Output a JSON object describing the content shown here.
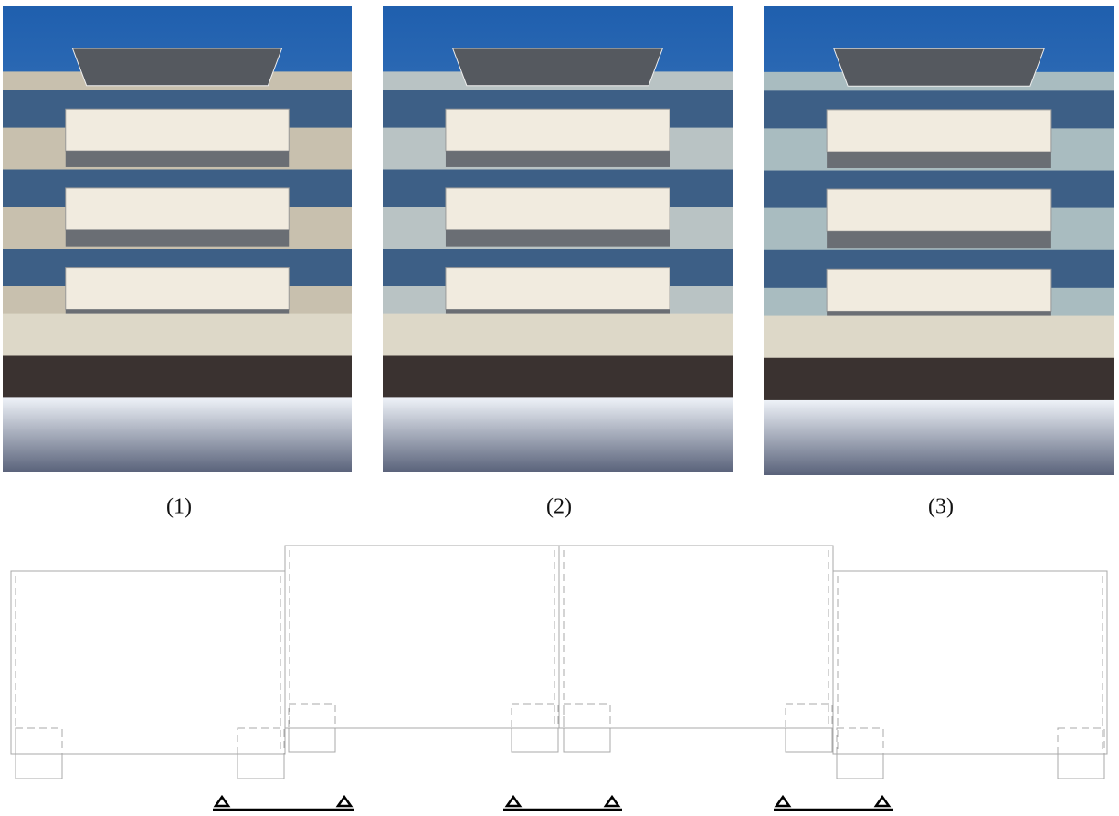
{
  "figures": [
    {
      "caption": "(1)"
    },
    {
      "caption": "(2)"
    },
    {
      "caption": "(3)"
    }
  ]
}
